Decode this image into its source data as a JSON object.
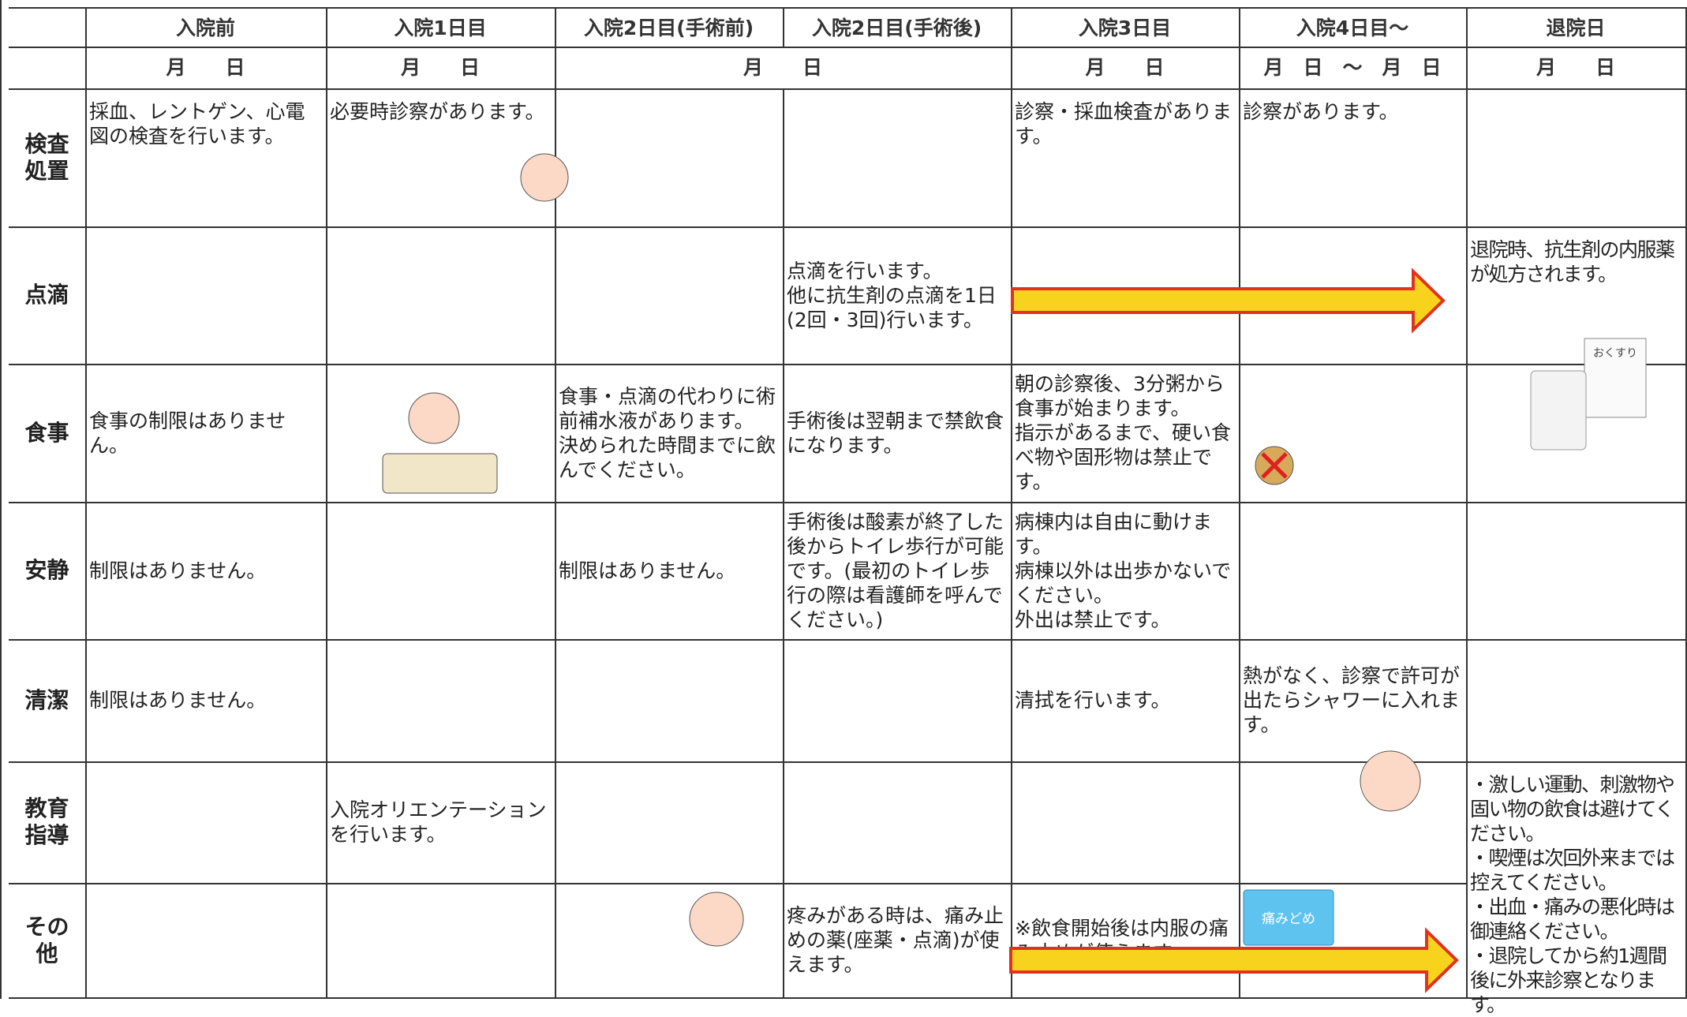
{
  "header": {
    "columns": [
      "入院前",
      "入院1日目",
      "入院2日目(手術前)",
      "入院2日目(手術後)",
      "入院3日目",
      "入院4日目～",
      "退院日"
    ],
    "dates": [
      "月　　日",
      "月　　日",
      "月　　日",
      "月　　日",
      "月　日　～　月　日",
      "月　　日"
    ]
  },
  "rows": [
    {
      "label": "検査処置",
      "cells": [
        "採血、レントゲン、心電図の検査を行います。",
        "必要時診察があります。",
        null,
        null,
        "診察・採血検査があります。",
        "診察があります。",
        null
      ]
    },
    {
      "label": "点滴",
      "cells": [
        null,
        null,
        null,
        "点滴を行います。\n他に抗生剤の点滴を1日(2回・3回)行います。",
        null,
        null,
        "退院時、抗生剤の内服薬が処方されます。"
      ]
    },
    {
      "label": "食事",
      "cells": [
        "食事の制限はありません。",
        null,
        "食事・点滴の代わりに術前補水液があります。\n決められた時間までに飲んでください。",
        "手術後は翌朝まで禁飲食になります。",
        "朝の診察後、3分粥から食事が始まります。\n指示があるまで、硬い食べ物や固形物は禁止です。",
        null,
        null
      ]
    },
    {
      "label": "安静",
      "cells": [
        "制限はありません。",
        null,
        "制限はありません。",
        "手術後は酸素が終了した後からトイレ歩行が可能です。(最初のトイレ歩行の際は看護師を呼んでください。)",
        "病棟内は自由に動けます。\n病棟以外は出歩かないでください。\n外出は禁止です。",
        null,
        null
      ]
    },
    {
      "label": "清潔",
      "cells": [
        "制限はありません。",
        null,
        null,
        null,
        "清拭を行います。",
        "熱がなく、診察で許可が出たらシャワーに入れます。",
        null
      ]
    },
    {
      "label": "教育指導",
      "cells": [
        null,
        "入院オリエンテーションを行います。",
        null,
        null,
        null,
        null,
        "・激しい運動、刺激物や固い物の飲食は避けてください。\n・喫煙は次回外来までは控えてください。\n・出血・痛みの悪化時は御連絡ください。\n・退院してから約1週間後に外来診察となります。"
      ]
    },
    {
      "label": "その他",
      "cells": [
        null,
        null,
        null,
        "疼みがある時は、痛み止めの薬(座薬・点滴)が使えます。",
        "※飲食開始後は内服の痛み止めが使えます。",
        null,
        null
      ]
    }
  ],
  "illustrations": {
    "medicine_paper": "おくすり",
    "painkiller_box": "痛みどめ"
  }
}
